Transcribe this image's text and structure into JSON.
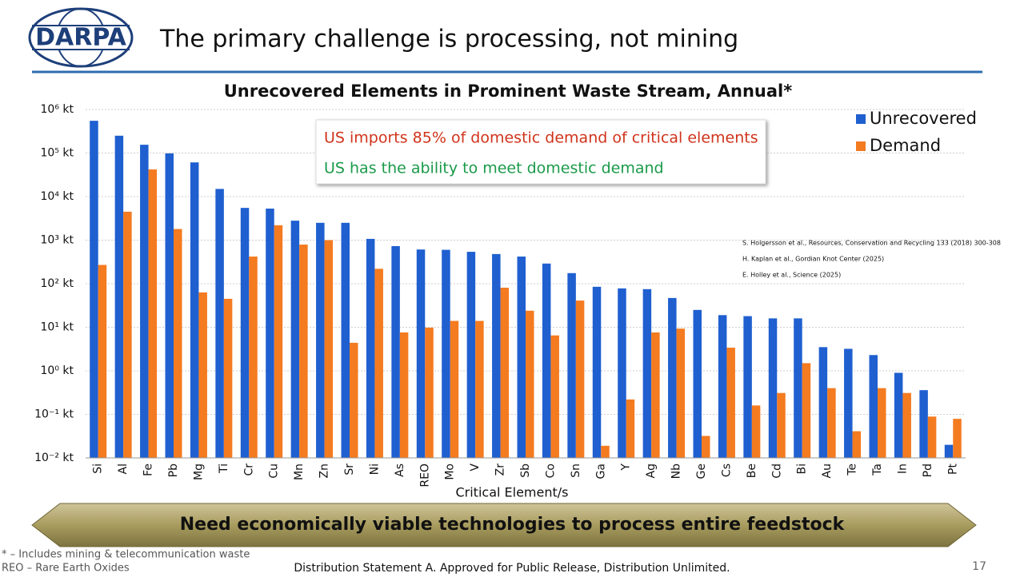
{
  "header": {
    "logo": "DARPA",
    "title": "The primary challenge is processing, not mining"
  },
  "chart_data": {
    "type": "bar",
    "title": "Unrecovered Elements in Prominent Waste Stream, Annual*",
    "x_label": "Critical Element/s",
    "log_scale": true,
    "grid": true,
    "legend": "upper right",
    "categories": [
      "Si",
      "Al",
      "Fe",
      "Pb",
      "Mg",
      "Ti",
      "Cr",
      "Cu",
      "Mn",
      "Zn",
      "Sr",
      "Ni",
      "As",
      "REO",
      "Mo",
      "V",
      "Zr",
      "Sb",
      "Co",
      "Sn",
      "Ga",
      "Y",
      "Ag",
      "Nb",
      "Ge",
      "Cs",
      "Be",
      "Cd",
      "Bi",
      "Au",
      "Te",
      "Ta",
      "In",
      "Pd",
      "Pt"
    ],
    "series": [
      {
        "name": "Unrecovered",
        "color": "#1f5fd0",
        "values": [
          550000,
          250000,
          155000,
          98000,
          61000,
          15000,
          5500,
          5300,
          2800,
          2500,
          2500,
          1070,
          730,
          610,
          600,
          540,
          480,
          420,
          290,
          175,
          85,
          78,
          75,
          47,
          25,
          19,
          18,
          16,
          16,
          3.5,
          3.2,
          2.3,
          0.9,
          0.36,
          0.02
        ]
      },
      {
        "name": "Demand",
        "color": "#f47b20",
        "values": [
          270,
          4500,
          42000,
          1800,
          63,
          45,
          420,
          2200,
          790,
          1000,
          4.4,
          220,
          7.6,
          9.8,
          14,
          14,
          81,
          24,
          6.5,
          41,
          0.019,
          0.22,
          7.6,
          9.3,
          0.032,
          3.4,
          0.16,
          0.31,
          1.5,
          0.4,
          0.041,
          0.4,
          0.31,
          0.089,
          0.079
        ]
      }
    ],
    "ylim": [
      0.01,
      1000000
    ],
    "yticks": [
      {
        "value": 1000000,
        "label": "10⁶ kt"
      },
      {
        "value": 100000,
        "label": "10⁵ kt"
      },
      {
        "value": 10000,
        "label": "10⁴ kt"
      },
      {
        "value": 1000,
        "label": "10³ kt"
      },
      {
        "value": 100,
        "label": "10² kt"
      },
      {
        "value": 10,
        "label": "10¹ kt"
      },
      {
        "value": 1,
        "label": "10⁰ kt"
      },
      {
        "value": 0.1,
        "label": "10⁻¹ kt"
      },
      {
        "value": 0.01,
        "label": "10⁻² kt"
      }
    ],
    "callout": [
      "US imports 85% of domestic demand of critical elements",
      "US has the ability to meet domestic demand"
    ],
    "references": [
      "S. Holgersson et al., Resources, Conservation and Recycling 133 (2018) 300-308",
      "H. Kaplan et al., Gordian Knot Center (2025)",
      "E. Holley et al., Science (2025)"
    ]
  },
  "banner": "Need economically viable technologies to process entire feedstock",
  "footer": {
    "notes": [
      "* – Includes mining & telecommunication waste",
      "REO – Rare Earth Oxides"
    ],
    "distribution": "Distribution Statement A. Approved for Public Release, Distribution Unlimited.",
    "page": "17"
  }
}
